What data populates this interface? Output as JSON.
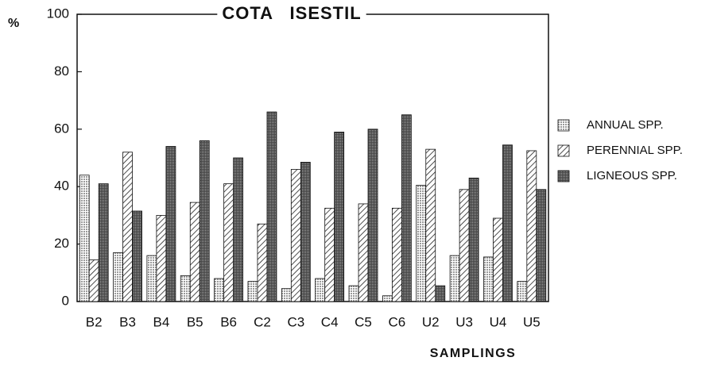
{
  "chart_data": {
    "type": "bar",
    "title": "COTA   ISESTIL",
    "y_label": "%",
    "x_label": "SAMPLINGS",
    "categories": [
      "B2",
      "B3",
      "B4",
      "B5",
      "B6",
      "C2",
      "C3",
      "C4",
      "C5",
      "C6",
      "U2",
      "U3",
      "U4",
      "U5"
    ],
    "series": [
      {
        "name": "ANNUAL SPP.",
        "color": "#d8d8d8",
        "pattern": "grid",
        "values": [
          44,
          17,
          16,
          9,
          8,
          7,
          4.5,
          8,
          5.5,
          2,
          40.5,
          16,
          15.5,
          7
        ]
      },
      {
        "name": "PERENNIAL SPP.",
        "color": "#ffffff",
        "pattern": "hatch",
        "values": [
          14.5,
          52,
          30,
          34.5,
          41,
          27,
          46,
          32.5,
          34,
          32.5,
          53,
          39,
          29,
          52.5
        ]
      },
      {
        "name": "LIGNEOUS SPP.",
        "color": "#555555",
        "pattern": "dense",
        "values": [
          41,
          31.5,
          54,
          56,
          50,
          66,
          48.5,
          59,
          60,
          65,
          5.5,
          43,
          54.5,
          39
        ]
      }
    ],
    "ylim": [
      0,
      100
    ],
    "yticks": [
      0,
      20,
      40,
      60,
      80,
      100
    ],
    "grid": false,
    "legend": "right"
  }
}
